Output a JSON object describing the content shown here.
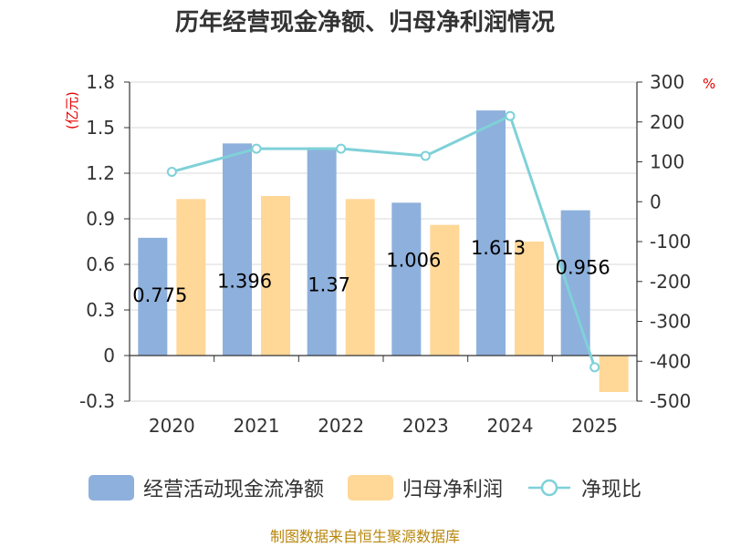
{
  "chart_data": {
    "type": "bar",
    "title": "历年经营现金净额、归母净利润情况",
    "categories": [
      "2020",
      "2021",
      "2022",
      "2023",
      "2024",
      "2025"
    ],
    "left_axis": {
      "unit_label": "(亿元)",
      "ylim": [
        -0.3,
        1.8
      ],
      "ticks": [
        "1.8",
        "1.5",
        "1.2",
        "0.9",
        "0.6",
        "0.3",
        "0",
        "-0.3"
      ]
    },
    "right_axis": {
      "unit_label": "%",
      "ylim": [
        -500,
        300
      ],
      "ticks": [
        "300",
        "200",
        "100",
        "0",
        "-100",
        "-200",
        "-300",
        "-400",
        "-500"
      ]
    },
    "series": [
      {
        "name": "经营活动现金流净额",
        "type": "bar",
        "axis": "left",
        "color": "#8eb0dc",
        "values": [
          0.775,
          1.396,
          1.37,
          1.006,
          1.613,
          0.956
        ],
        "labels": [
          "0.775",
          "1.396",
          "1.37",
          "1.006",
          "1.613",
          "0.956"
        ]
      },
      {
        "name": "归母净利润",
        "type": "bar",
        "axis": "left",
        "color": "#ffd797",
        "values": [
          1.03,
          1.05,
          1.03,
          0.86,
          0.75,
          -0.24
        ]
      },
      {
        "name": "净现比",
        "type": "line",
        "axis": "right",
        "color": "#7fd1d8",
        "values": [
          75,
          133,
          133,
          115,
          215,
          -415
        ]
      }
    ],
    "grid": true,
    "legend_position": "bottom"
  },
  "source_note": "制图数据来自恒生聚源数据库"
}
